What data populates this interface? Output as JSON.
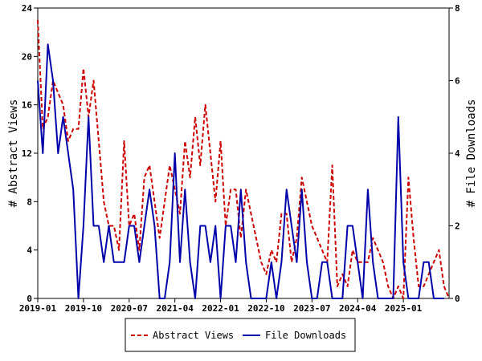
{
  "chart_data": {
    "type": "line",
    "title": "",
    "ylabel_left": "# Abstract Views",
    "ylabel_right": "# File Downloads",
    "y_left_lim": [
      0,
      24
    ],
    "y_right_lim": [
      0,
      8
    ],
    "y_left_ticks": [
      "0",
      "4",
      "8",
      "12",
      "16",
      "20",
      "24"
    ],
    "y_right_ticks": [
      "0",
      "2",
      "4",
      "6",
      "8"
    ],
    "x_start": "2019-01",
    "x_ticks": [
      "2019-01",
      "2019-10",
      "2020-07",
      "2021-04",
      "2022-01",
      "2022-10",
      "2023-07",
      "2024-04",
      "2025-01"
    ],
    "grid": false,
    "legend_position": "bottom",
    "series": [
      {
        "name": "Abstract Views",
        "axis": "left",
        "color": "#cc0000",
        "style": "dashed",
        "values": [
          23,
          14,
          15,
          18,
          17,
          16,
          13,
          14,
          14,
          19,
          15,
          18,
          13,
          8,
          6,
          6,
          4,
          13,
          6,
          7,
          4,
          10,
          11,
          8,
          5,
          8,
          11,
          9,
          7,
          13,
          10,
          15,
          11,
          16,
          12,
          8,
          13,
          6,
          9,
          9,
          5,
          9,
          7,
          5,
          3,
          2,
          4,
          3,
          7,
          7,
          3,
          5,
          10,
          8,
          6,
          5,
          4,
          3,
          11,
          1,
          2,
          1,
          4,
          3,
          3,
          3,
          5,
          4,
          3,
          1,
          0,
          1,
          0,
          10,
          5,
          1,
          1,
          2,
          3,
          4,
          1,
          0
        ]
      },
      {
        "name": "File Downloads",
        "axis": "right",
        "color": "#0000aa",
        "style": "solid",
        "values": [
          6,
          4,
          7,
          6,
          4,
          5,
          4,
          3,
          0,
          2,
          5,
          2,
          2,
          1,
          2,
          1,
          1,
          1,
          2,
          2,
          1,
          2,
          3,
          2,
          0,
          0,
          1,
          4,
          1,
          3,
          1,
          0,
          2,
          2,
          1,
          2,
          0,
          2,
          2,
          1,
          3,
          1,
          0,
          0,
          0,
          0,
          1,
          0,
          1,
          3,
          2,
          1,
          3,
          1,
          0,
          0,
          1,
          1,
          0,
          0,
          0,
          2,
          2,
          1,
          0,
          3,
          1,
          0,
          0,
          0,
          0,
          5,
          1,
          0,
          0,
          0,
          1,
          1,
          0,
          0,
          0
        ]
      }
    ]
  }
}
